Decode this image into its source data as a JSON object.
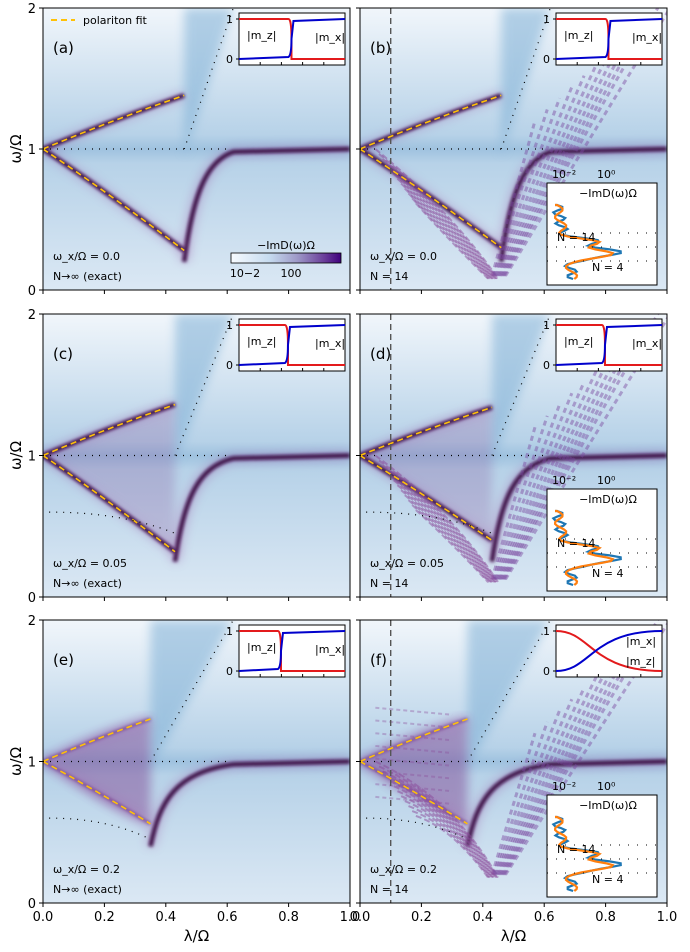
{
  "figure": {
    "legend_label": "polariton fit",
    "colorbar": {
      "label": "−ImD(ω)Ω",
      "tick_low": "10",
      "tick_low_exp": "−2",
      "tick_high": "10",
      "tick_high_exp": "0"
    },
    "colors": {
      "polariton_fit": "#ffc107",
      "m_z": "#e31a1c",
      "m_x": "#0000cc",
      "N14_curve": "#ff7f0e",
      "N4_curve": "#1f77b4",
      "spectral_dark": "#3c0a46"
    }
  },
  "chart_data": [
    {
      "type": "heatmap",
      "panel": "(a)",
      "omega_x": "ω_x/Ω = 0.0",
      "N": "N→∞ (exact)",
      "xlabel": "",
      "ylabel": "ω/Ω",
      "xlim": [
        0,
        1
      ],
      "ylim": [
        0,
        2
      ],
      "xticks": [
        "0.0",
        "0.2",
        "0.4",
        "0.6",
        "0.8",
        "1.0"
      ],
      "yticks": [
        "0",
        "1",
        "2"
      ],
      "critical_lambda": 0.46,
      "upper_end": 1.38,
      "lower_end": 0.28,
      "vline": null,
      "inset": {
        "labels": [
          "|m_z|",
          "|m_x|"
        ],
        "yticks": [
          "0",
          "1"
        ],
        "switch": 0.45
      }
    },
    {
      "type": "heatmap",
      "panel": "(b)",
      "omega_x": "ω_x/Ω = 0.0",
      "N": "N = 14",
      "xlabel": "",
      "ylabel": "",
      "xlim": [
        0,
        1
      ],
      "ylim": [
        0,
        2
      ],
      "xticks": [
        "0.0",
        "0.2",
        "0.4",
        "0.6",
        "0.8",
        "1.0"
      ],
      "yticks": [],
      "critical_lambda": 0.46,
      "upper_end": 1.38,
      "lower_end": 0.3,
      "vline": 0.1,
      "inset": {
        "labels": [
          "|m_z|",
          "|m_x|"
        ],
        "yticks": [
          "0",
          "1"
        ],
        "switch": 0.45
      },
      "spectrum_inset": {
        "title": "−ImD(ω)Ω",
        "labels": [
          "N = 14",
          "N = 4"
        ],
        "xticks": [
          "10⁻²",
          "10⁰"
        ]
      }
    },
    {
      "type": "heatmap",
      "panel": "(c)",
      "omega_x": "ω_x/Ω = 0.05",
      "N": "N→∞ (exact)",
      "xlabel": "",
      "ylabel": "ω/Ω",
      "xlim": [
        0,
        1
      ],
      "ylim": [
        0,
        2
      ],
      "xticks": [
        "0.0",
        "0.2",
        "0.4",
        "0.6",
        "0.8",
        "1.0"
      ],
      "yticks": [
        "0",
        "1",
        "2"
      ],
      "critical_lambda": 0.43,
      "upper_end": 1.36,
      "lower_end": 0.32,
      "vline": null,
      "inset": {
        "labels": [
          "|m_z|",
          "|m_x|"
        ],
        "yticks": [
          "0",
          "1"
        ],
        "switch": 0.42
      }
    },
    {
      "type": "heatmap",
      "panel": "(d)",
      "omega_x": "ω_x/Ω = 0.05",
      "N": "N = 14",
      "xlabel": "",
      "ylabel": "",
      "xlim": [
        0,
        1
      ],
      "ylim": [
        0,
        2
      ],
      "xticks": [
        "0.0",
        "0.2",
        "0.4",
        "0.6",
        "0.8",
        "1.0"
      ],
      "yticks": [],
      "critical_lambda": 0.43,
      "upper_end": 1.34,
      "lower_end": 0.4,
      "vline": 0.1,
      "inset": {
        "labels": [
          "|m_z|",
          "|m_x|"
        ],
        "yticks": [
          "0",
          "1"
        ],
        "switch": 0.42
      },
      "spectrum_inset": {
        "title": "−ImD(ω)Ω",
        "labels": [
          "N = 14",
          "N = 4"
        ],
        "xticks": [
          "10⁻²",
          "10⁰"
        ]
      }
    },
    {
      "type": "heatmap",
      "panel": "(e)",
      "omega_x": "ω_x/Ω = 0.2",
      "N": "N→∞ (exact)",
      "xlabel": "λ/Ω",
      "ylabel": "ω/Ω",
      "xlim": [
        0,
        1
      ],
      "ylim": [
        0,
        2
      ],
      "xticks": [
        "0.0",
        "0.2",
        "0.4",
        "0.6",
        "0.8",
        "1.0"
      ],
      "yticks": [
        "0",
        "1",
        "2"
      ],
      "critical_lambda": 0.35,
      "upper_end": 1.3,
      "lower_end": 0.56,
      "vline": null,
      "inset": {
        "labels": [
          "|m_z|",
          "|m_x|"
        ],
        "yticks": [
          "0",
          "1"
        ],
        "switch": 0.36
      }
    },
    {
      "type": "heatmap",
      "panel": "(f)",
      "omega_x": "ω_x/Ω = 0.2",
      "N": "N = 14",
      "xlabel": "λ/Ω",
      "ylabel": "",
      "xlim": [
        0,
        1
      ],
      "ylim": [
        0,
        2
      ],
      "xticks": [
        "0.0",
        "0.2",
        "0.4",
        "0.6",
        "0.8",
        "1.0"
      ],
      "yticks": [],
      "critical_lambda": 0.35,
      "upper_end": 1.3,
      "lower_end": 0.56,
      "vline": 0.1,
      "inset": {
        "labels": [
          "|m_x|",
          "|m_z|"
        ],
        "yticks": [
          "0",
          "1"
        ],
        "switch": 0.3,
        "smooth": true
      },
      "spectrum_inset": {
        "title": "−ImD(ω)Ω",
        "labels": [
          "N = 14",
          "N = 4"
        ],
        "xticks": [
          "10⁻²",
          "10⁰"
        ]
      }
    }
  ]
}
